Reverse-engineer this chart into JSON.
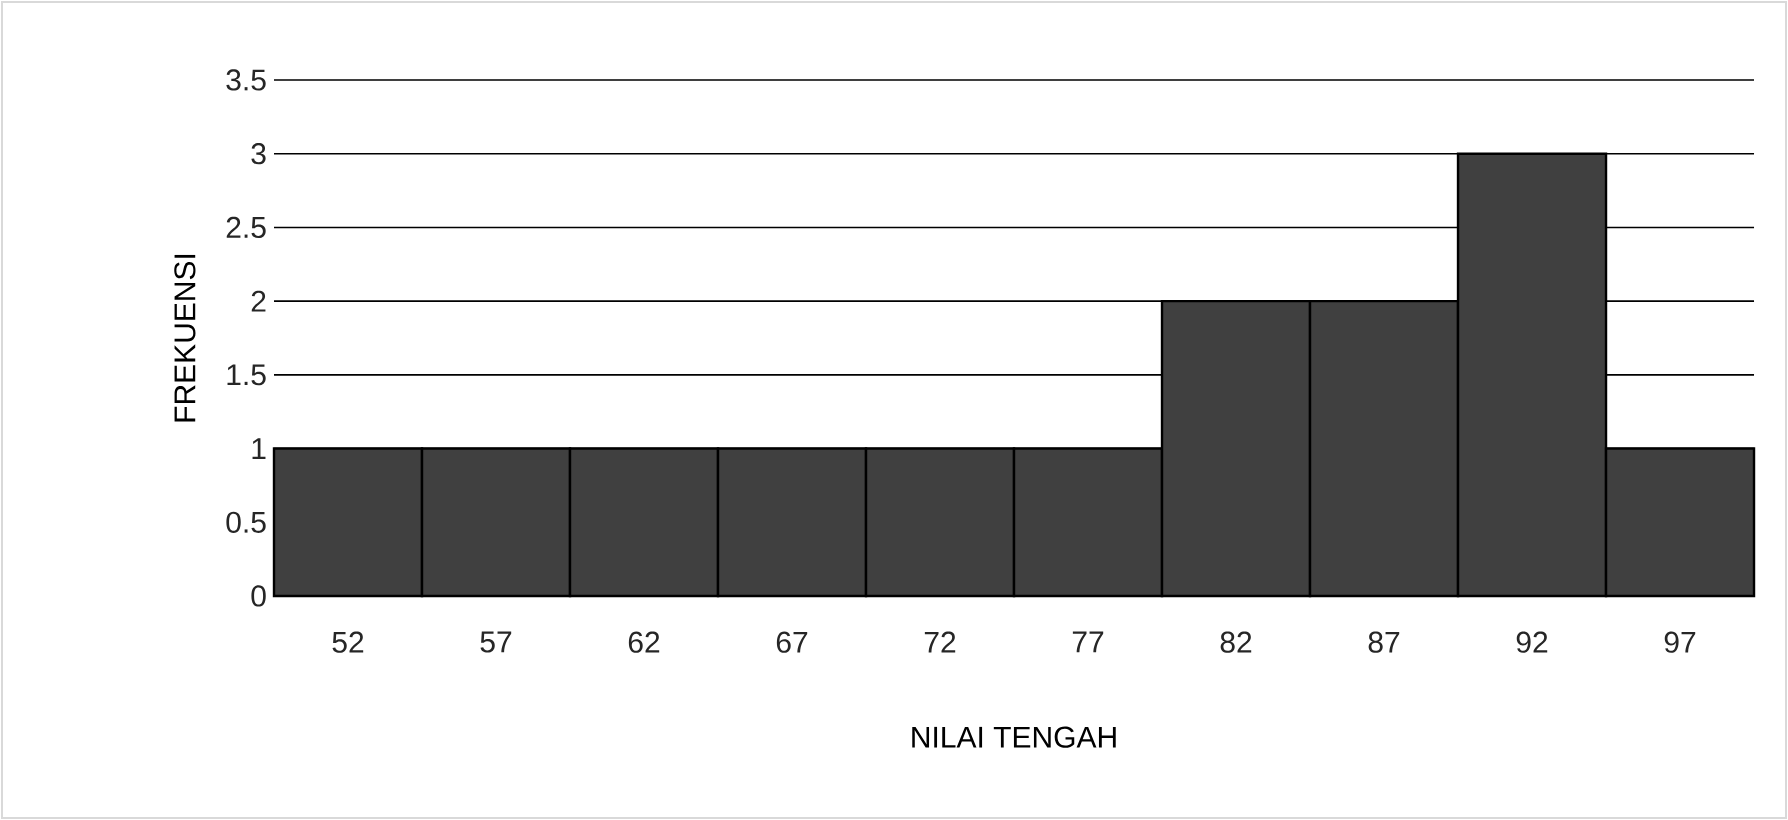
{
  "chart_data": {
    "type": "bar",
    "xlabel": "NILAI TENGAH",
    "ylabel": "FREKUENSI",
    "categories": [
      "52",
      "57",
      "62",
      "67",
      "72",
      "77",
      "82",
      "87",
      "92",
      "97"
    ],
    "values": [
      1,
      1,
      1,
      1,
      1,
      1,
      2,
      2,
      3,
      1
    ],
    "color": "#404040",
    "ylim": [
      0,
      3.5
    ],
    "yticks": [
      0,
      0.5,
      1,
      1.5,
      2,
      2.5,
      3,
      3.5
    ],
    "grid": "y"
  }
}
